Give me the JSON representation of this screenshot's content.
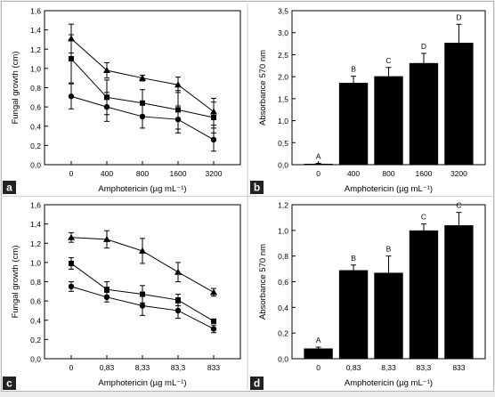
{
  "panels": {
    "a": {
      "letter": "a"
    },
    "b": {
      "letter": "b"
    },
    "c": {
      "letter": "c"
    },
    "d": {
      "letter": "d"
    }
  },
  "chart_data": [
    {
      "id": "a",
      "type": "line",
      "panel_letter": "a",
      "categories": [
        "0",
        "400",
        "800",
        "1600",
        "3200"
      ],
      "xlabel": "Amphotericin (µg mL⁻¹)",
      "ylabel": "Fungal growth (cm)",
      "ylim": [
        0,
        1.6
      ],
      "yticks": [
        "0,0",
        "0,2",
        "0,4",
        "0,6",
        "0,8",
        "1,0",
        "1,2",
        "1,4",
        "1,6"
      ],
      "series": [
        {
          "marker": "triangle",
          "values": [
            1.31,
            0.98,
            0.9,
            0.83,
            0.55
          ],
          "errors": [
            0.15,
            0.08,
            0.03,
            0.08,
            0.14
          ]
        },
        {
          "marker": "square",
          "values": [
            1.1,
            0.7,
            0.64,
            0.57,
            0.49
          ],
          "errors": [
            0.25,
            0.18,
            0.14,
            0.2,
            0.16
          ]
        },
        {
          "marker": "circle",
          "values": [
            0.71,
            0.6,
            0.5,
            0.47,
            0.26
          ],
          "errors": [
            0.13,
            0.15,
            0.12,
            0.14,
            0.12
          ]
        }
      ]
    },
    {
      "id": "b",
      "type": "bar",
      "panel_letter": "b",
      "categories": [
        "0",
        "400",
        "800",
        "1600",
        "3200"
      ],
      "values": [
        0.02,
        1.86,
        2.01,
        2.31,
        2.77
      ],
      "errors": [
        0.01,
        0.15,
        0.2,
        0.22,
        0.42
      ],
      "letters": [
        "A",
        "B",
        "C",
        "D",
        "D"
      ],
      "xlabel": "Amphotericin (µg mL⁻¹)",
      "ylabel": "Absorbance 570 nm",
      "ylim": [
        0,
        3.5
      ],
      "yticks": [
        "0,0",
        "0,5",
        "1,0",
        "1,5",
        "2,0",
        "2,5",
        "3,0",
        "3,5"
      ]
    },
    {
      "id": "c",
      "type": "line",
      "panel_letter": "c",
      "categories": [
        "0",
        "0,83",
        "8,33",
        "83,3",
        "833"
      ],
      "xlabel": "Amphotericin (µg mL⁻¹)",
      "ylabel": "Fungal growth (cm)",
      "ylim": [
        0,
        1.6
      ],
      "yticks": [
        "0,0",
        "0,2",
        "0,4",
        "0,6",
        "0,8",
        "1,0",
        "1,2",
        "1,4",
        "1,6"
      ],
      "series": [
        {
          "marker": "triangle",
          "values": [
            1.26,
            1.24,
            1.12,
            0.9,
            0.69
          ],
          "errors": [
            0.05,
            0.09,
            0.13,
            0.1,
            0.04
          ]
        },
        {
          "marker": "square",
          "values": [
            0.99,
            0.72,
            0.67,
            0.61,
            0.39
          ],
          "errors": [
            0.06,
            0.08,
            0.09,
            0.06,
            0.02
          ]
        },
        {
          "marker": "circle",
          "values": [
            0.75,
            0.64,
            0.55,
            0.5,
            0.31
          ],
          "errors": [
            0.05,
            0.05,
            0.1,
            0.08,
            0.04
          ]
        }
      ]
    },
    {
      "id": "d",
      "type": "bar",
      "panel_letter": "d",
      "categories": [
        "0",
        "0,83",
        "8,33",
        "83,3",
        "833"
      ],
      "values": [
        0.08,
        0.69,
        0.67,
        1.0,
        1.04
      ],
      "errors": [
        0.01,
        0.04,
        0.13,
        0.05,
        0.1
      ],
      "letters": [
        "A",
        "B",
        "B",
        "C",
        "C"
      ],
      "xlabel": "Amphotericin (µg mL⁻¹)",
      "ylabel": "Absorbance 570 nm",
      "ylim": [
        0,
        1.2
      ],
      "yticks": [
        "0,0",
        "0,2",
        "0,4",
        "0,6",
        "0,8",
        "1,0",
        "1,2"
      ]
    }
  ]
}
